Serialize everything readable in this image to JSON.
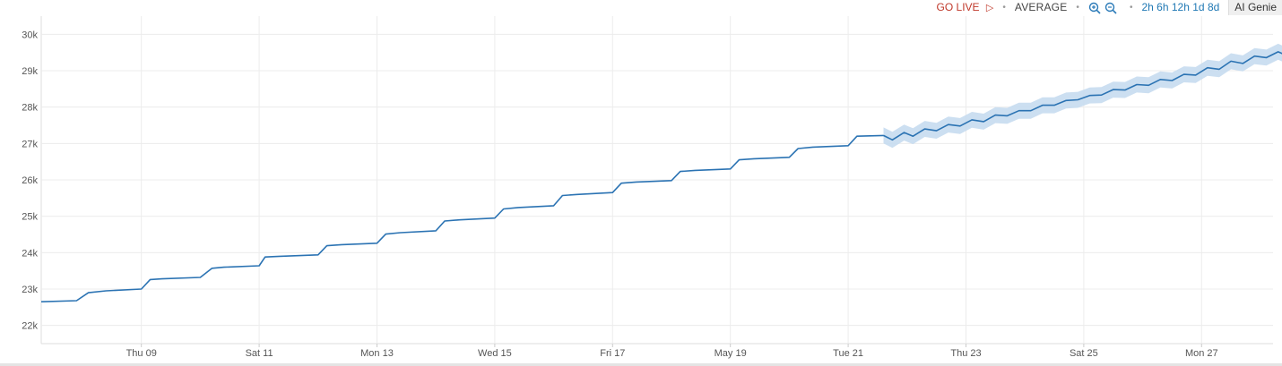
{
  "toolbar": {
    "go_live": "GO LIVE",
    "aggregation": "AVERAGE",
    "zoom_in_icon": "zoom-in-icon",
    "zoom_out_icon": "zoom-out-icon",
    "ranges": [
      "2h",
      "6h",
      "12h",
      "1d",
      "8d"
    ],
    "ai_genie": "AI Genie"
  },
  "colors": {
    "line": "#2b73b3",
    "band": "#c6dbef",
    "go_live": "#c0392b",
    "range_links": "#1f78b4"
  },
  "chart_data": {
    "type": "line",
    "x_tick_labels": [
      "Thu 09",
      "Sat 11",
      "Mon 13",
      "Wed 15",
      "Fri 17",
      "May 19",
      "Tue 21",
      "Thu 23",
      "Sat 25",
      "Mon 27"
    ],
    "y_tick_labels": [
      "22k",
      "23k",
      "24k",
      "25k",
      "26k",
      "27k",
      "28k",
      "29k",
      "30k"
    ],
    "ylim": [
      21500,
      30500
    ],
    "grid": true,
    "series": [
      {
        "kind": "actual",
        "x_days": [
          7.3,
          7.9,
          8.1,
          8.4,
          9.0,
          9.15,
          9.35,
          10.0,
          10.2,
          10.4,
          11.0,
          11.1,
          11.35,
          12.0,
          12.15,
          12.4,
          13.0,
          13.15,
          13.4,
          14.0,
          14.15,
          14.4,
          15.0,
          15.15,
          15.4,
          16.0,
          16.15,
          16.4,
          17.0,
          17.15,
          17.4,
          18.0,
          18.15,
          18.4,
          19.0,
          19.15,
          19.4,
          20.0,
          20.15,
          20.4,
          21.0,
          21.15,
          21.6
        ],
        "values": [
          22650,
          22680,
          22900,
          22950,
          23000,
          23260,
          23280,
          23320,
          23570,
          23600,
          23640,
          23880,
          23900,
          23940,
          24190,
          24220,
          24260,
          24510,
          24550,
          24600,
          24870,
          24900,
          24950,
          25200,
          25240,
          25290,
          25570,
          25600,
          25650,
          25910,
          25940,
          25980,
          26230,
          26260,
          26300,
          26550,
          26580,
          26620,
          26860,
          26900,
          26940,
          27200,
          27220
        ]
      },
      {
        "kind": "forecast",
        "x_days": [
          21.6,
          21.75,
          21.95,
          22.1,
          22.3,
          22.5,
          22.7,
          22.9,
          23.1,
          23.3,
          23.5,
          23.7,
          23.9,
          24.1,
          24.3,
          24.5,
          24.7,
          24.9,
          25.1,
          25.3,
          25.5,
          25.7,
          25.9,
          26.1,
          26.3,
          26.5,
          26.7,
          26.9,
          27.1,
          27.3,
          27.5,
          27.7,
          27.9,
          28.1,
          28.3,
          28.55
        ],
        "values": [
          27220,
          27100,
          27300,
          27200,
          27400,
          27350,
          27520,
          27480,
          27650,
          27600,
          27780,
          27760,
          27900,
          27900,
          28050,
          28050,
          28180,
          28200,
          28320,
          28330,
          28480,
          28470,
          28620,
          28600,
          28760,
          28730,
          28900,
          28880,
          29080,
          29040,
          29260,
          29200,
          29400,
          29360,
          29520,
          29350
        ],
        "band_half_width": 220
      }
    ]
  }
}
